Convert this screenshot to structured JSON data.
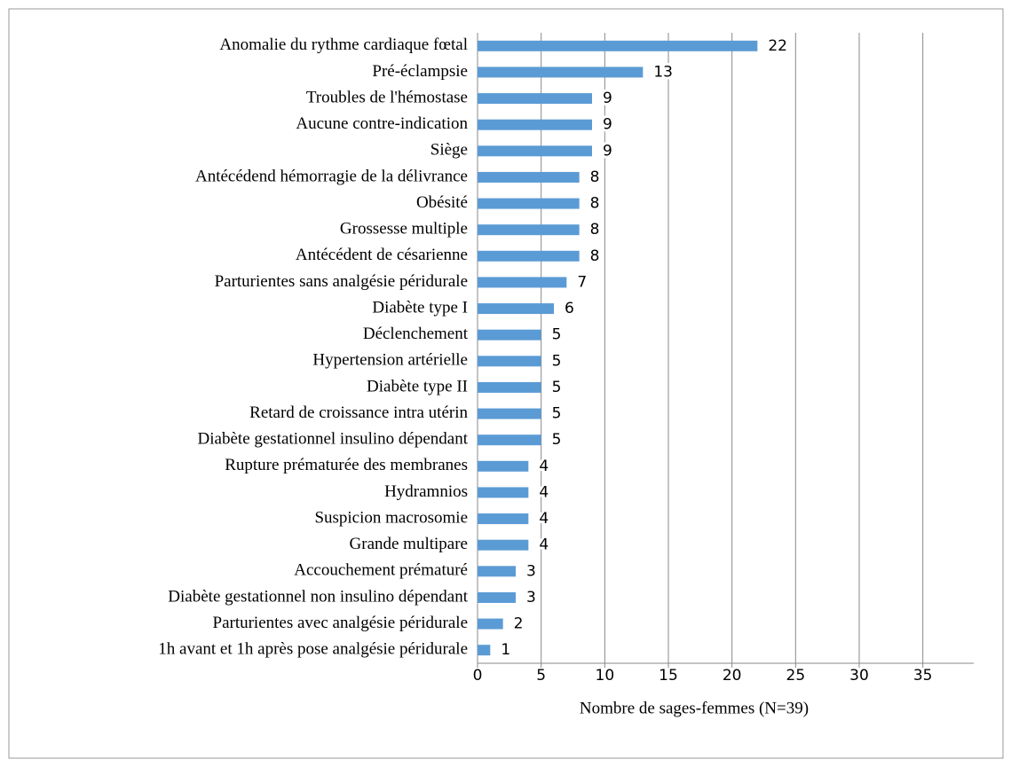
{
  "chart_data": {
    "type": "barh",
    "categories": [
      "Anomalie du rythme cardiaque fœtal",
      "Pré-éclampsie",
      "Troubles de l'hémostase",
      "Aucune contre-indication",
      "Siège",
      "Antécédend hémorragie de la délivrance",
      "Obésité",
      "Grossesse multiple",
      "Antécédent de césarienne",
      "Parturientes sans analgésie péridurale",
      "Diabète type I",
      "Déclenchement",
      "Hypertension artérielle",
      "Diabète type II",
      "Retard de croissance intra utérin",
      "Diabète gestationnel insulino dépendant",
      "Rupture prématurée des membranes",
      "Hydramnios",
      "Suspicion macrosomie",
      "Grande multipare",
      "Accouchement prématuré",
      "Diabète gestationnel non insulino dépendant",
      "Parturientes avec analgésie péridurale",
      "1h avant et 1h après pose analgésie péridurale"
    ],
    "values": [
      22,
      13,
      9,
      9,
      9,
      8,
      8,
      8,
      8,
      7,
      6,
      5,
      5,
      5,
      5,
      5,
      4,
      4,
      4,
      4,
      3,
      3,
      2,
      1
    ],
    "color": "#5b9bd5",
    "x_label": "Nombre de sages-femmes (N=39)",
    "xlim": [
      0,
      39
    ],
    "xticks": [
      0,
      5,
      10,
      15,
      20,
      25,
      30,
      35
    ],
    "grid": true
  }
}
